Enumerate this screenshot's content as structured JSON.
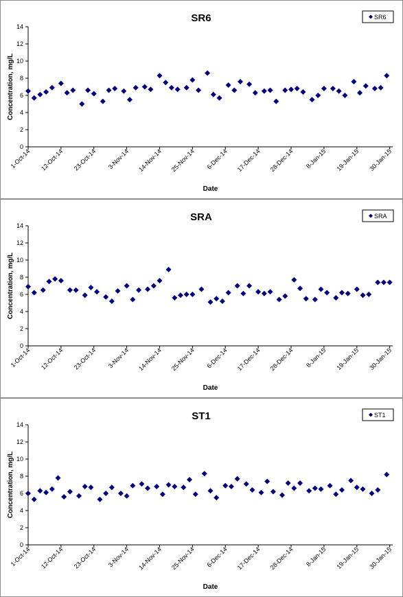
{
  "chart_data": [
    {
      "type": "scatter",
      "title": "SR6",
      "xlabel": "Date",
      "ylabel": "Concentration, mg/L",
      "ylim": [
        0,
        14
      ],
      "yticks": [
        "0",
        "2",
        "4",
        "6",
        "8",
        "10",
        "12",
        "14"
      ],
      "xlim": [
        "1-Oct-14",
        "31-Jan-15"
      ],
      "xticks": [
        "1-Oct-14",
        "12-Oct-14",
        "23-Oct-14",
        "3-Nov-14",
        "14-Nov-14",
        "25-Nov-14",
        "6-Dec-14",
        "17-Dec-14",
        "28-Dec-14",
        "8-Jan-15",
        "19-Jan-15",
        "30-Jan-15"
      ],
      "grid": false,
      "legend_position": "top-right",
      "marker_color": "#000080",
      "series": [
        {
          "name": "SR6",
          "points": [
            [
              "1-Oct-14",
              6.5
            ],
            [
              "3-Oct-14",
              5.7
            ],
            [
              "5-Oct-14",
              6.1
            ],
            [
              "7-Oct-14",
              6.4
            ],
            [
              "9-Oct-14",
              6.9
            ],
            [
              "12-Oct-14",
              7.4
            ],
            [
              "14-Oct-14",
              6.3
            ],
            [
              "16-Oct-14",
              6.6
            ],
            [
              "19-Oct-14",
              5.0
            ],
            [
              "21-Oct-14",
              6.6
            ],
            [
              "23-Oct-14",
              6.2
            ],
            [
              "26-Oct-14",
              5.3
            ],
            [
              "28-Oct-14",
              6.6
            ],
            [
              "30-Oct-14",
              6.8
            ],
            [
              "2-Nov-14",
              6.5
            ],
            [
              "4-Nov-14",
              5.5
            ],
            [
              "6-Nov-14",
              6.9
            ],
            [
              "9-Nov-14",
              7.0
            ],
            [
              "11-Nov-14",
              6.7
            ],
            [
              "14-Nov-14",
              8.3
            ],
            [
              "16-Nov-14",
              7.5
            ],
            [
              "18-Nov-14",
              6.9
            ],
            [
              "20-Nov-14",
              6.7
            ],
            [
              "23-Nov-14",
              6.9
            ],
            [
              "25-Nov-14",
              7.8
            ],
            [
              "27-Nov-14",
              6.6
            ],
            [
              "30-Nov-14",
              8.6
            ],
            [
              "2-Dec-14",
              6.1
            ],
            [
              "4-Dec-14",
              5.7
            ],
            [
              "7-Dec-14",
              7.2
            ],
            [
              "9-Dec-14",
              6.6
            ],
            [
              "11-Dec-14",
              7.6
            ],
            [
              "14-Dec-14",
              7.3
            ],
            [
              "16-Dec-14",
              6.3
            ],
            [
              "19-Dec-14",
              6.5
            ],
            [
              "21-Dec-14",
              6.6
            ],
            [
              "23-Dec-14",
              5.3
            ],
            [
              "26-Dec-14",
              6.6
            ],
            [
              "28-Dec-14",
              6.7
            ],
            [
              "30-Dec-14",
              6.8
            ],
            [
              "1-Jan-15",
              6.4
            ],
            [
              "4-Jan-15",
              5.5
            ],
            [
              "6-Jan-15",
              6.0
            ],
            [
              "8-Jan-15",
              6.8
            ],
            [
              "11-Jan-15",
              6.8
            ],
            [
              "13-Jan-15",
              6.5
            ],
            [
              "15-Jan-15",
              6.0
            ],
            [
              "18-Jan-15",
              7.6
            ],
            [
              "20-Jan-15",
              6.3
            ],
            [
              "22-Jan-15",
              7.1
            ],
            [
              "25-Jan-15",
              6.8
            ],
            [
              "27-Jan-15",
              6.9
            ],
            [
              "29-Jan-15",
              8.3
            ]
          ]
        }
      ]
    },
    {
      "type": "scatter",
      "title": "SRA",
      "xlabel": "Date",
      "ylabel": "Concentration, mg/L",
      "ylim": [
        0,
        14
      ],
      "yticks": [
        "0",
        "2",
        "4",
        "6",
        "8",
        "10",
        "12",
        "14"
      ],
      "xlim": [
        "1-Oct-14",
        "31-Jan-15"
      ],
      "xticks": [
        "1-Oct-14",
        "12-Oct-14",
        "23-Oct-14",
        "3-Nov-14",
        "14-Nov-14",
        "25-Nov-14",
        "6-Dec-14",
        "17-Dec-14",
        "28-Dec-14",
        "8-Jan-15",
        "19-Jan-15",
        "30-Jan-15"
      ],
      "grid": false,
      "legend_position": "top-right",
      "marker_color": "#000080",
      "series": [
        {
          "name": "SRA",
          "points": [
            [
              "1-Oct-14",
              6.9
            ],
            [
              "3-Oct-14",
              6.2
            ],
            [
              "6-Oct-14",
              6.5
            ],
            [
              "8-Oct-14",
              7.5
            ],
            [
              "10-Oct-14",
              7.8
            ],
            [
              "12-Oct-14",
              7.6
            ],
            [
              "15-Oct-14",
              6.5
            ],
            [
              "17-Oct-14",
              6.5
            ],
            [
              "20-Oct-14",
              5.9
            ],
            [
              "22-Oct-14",
              6.8
            ],
            [
              "24-Oct-14",
              6.3
            ],
            [
              "27-Oct-14",
              5.7
            ],
            [
              "29-Oct-14",
              5.2
            ],
            [
              "31-Oct-14",
              6.4
            ],
            [
              "3-Nov-14",
              7.0
            ],
            [
              "5-Nov-14",
              5.4
            ],
            [
              "7-Nov-14",
              6.5
            ],
            [
              "10-Nov-14",
              6.6
            ],
            [
              "12-Nov-14",
              7.0
            ],
            [
              "14-Nov-14",
              7.6
            ],
            [
              "17-Nov-14",
              8.9
            ],
            [
              "19-Nov-14",
              5.6
            ],
            [
              "21-Nov-14",
              5.9
            ],
            [
              "23-Nov-14",
              6.0
            ],
            [
              "25-Nov-14",
              6.0
            ],
            [
              "28-Nov-14",
              6.6
            ],
            [
              "1-Dec-14",
              5.1
            ],
            [
              "3-Dec-14",
              5.5
            ],
            [
              "5-Dec-14",
              5.2
            ],
            [
              "7-Dec-14",
              6.2
            ],
            [
              "10-Dec-14",
              7.0
            ],
            [
              "12-Dec-14",
              6.1
            ],
            [
              "14-Dec-14",
              7.0
            ],
            [
              "17-Dec-14",
              6.3
            ],
            [
              "19-Dec-14",
              6.1
            ],
            [
              "21-Dec-14",
              6.3
            ],
            [
              "24-Dec-14",
              5.4
            ],
            [
              "26-Dec-14",
              5.8
            ],
            [
              "29-Dec-14",
              7.7
            ],
            [
              "31-Dec-14",
              6.7
            ],
            [
              "2-Jan-15",
              5.5
            ],
            [
              "5-Jan-15",
              5.4
            ],
            [
              "7-Jan-15",
              6.6
            ],
            [
              "9-Jan-15",
              6.2
            ],
            [
              "12-Jan-15",
              5.6
            ],
            [
              "14-Jan-15",
              6.2
            ],
            [
              "16-Jan-15",
              6.1
            ],
            [
              "19-Jan-15",
              6.6
            ],
            [
              "21-Jan-15",
              5.9
            ],
            [
              "23-Jan-15",
              6.0
            ],
            [
              "26-Jan-15",
              7.4
            ],
            [
              "28-Jan-15",
              7.4
            ],
            [
              "30-Jan-15",
              7.4
            ]
          ]
        }
      ]
    },
    {
      "type": "scatter",
      "title": "ST1",
      "xlabel": "Date",
      "ylabel": "Concentration, mg/L",
      "ylim": [
        0,
        14
      ],
      "yticks": [
        "0",
        "2",
        "4",
        "6",
        "8",
        "10",
        "12",
        "14"
      ],
      "xlim": [
        "1-Oct-14",
        "31-Jan-15"
      ],
      "xticks": [
        "1-Oct-14",
        "12-Oct-14",
        "23-Oct-14",
        "3-Nov-14",
        "14-Nov-14",
        "25-Nov-14",
        "6-Dec-14",
        "17-Dec-14",
        "28-Dec-14",
        "8-Jan-15",
        "19-Jan-15",
        "30-Jan-15"
      ],
      "grid": false,
      "legend_position": "top-right",
      "marker_color": "#000080",
      "series": [
        {
          "name": "ST1",
          "points": [
            [
              "1-Oct-14",
              6.0
            ],
            [
              "3-Oct-14",
              5.3
            ],
            [
              "5-Oct-14",
              6.3
            ],
            [
              "7-Oct-14",
              6.1
            ],
            [
              "9-Oct-14",
              6.5
            ],
            [
              "11-Oct-14",
              7.8
            ],
            [
              "13-Oct-14",
              5.6
            ],
            [
              "15-Oct-14",
              6.2
            ],
            [
              "18-Oct-14",
              5.7
            ],
            [
              "20-Oct-14",
              6.8
            ],
            [
              "22-Oct-14",
              6.7
            ],
            [
              "25-Oct-14",
              5.3
            ],
            [
              "27-Oct-14",
              6.0
            ],
            [
              "29-Oct-14",
              6.7
            ],
            [
              "1-Nov-14",
              6.0
            ],
            [
              "3-Nov-14",
              5.7
            ],
            [
              "5-Nov-14",
              6.9
            ],
            [
              "8-Nov-14",
              7.1
            ],
            [
              "10-Nov-14",
              6.6
            ],
            [
              "13-Nov-14",
              6.8
            ],
            [
              "15-Nov-14",
              5.9
            ],
            [
              "17-Nov-14",
              7.0
            ],
            [
              "19-Nov-14",
              6.8
            ],
            [
              "22-Nov-14",
              6.7
            ],
            [
              "24-Nov-14",
              7.6
            ],
            [
              "26-Nov-14",
              5.9
            ],
            [
              "29-Nov-14",
              8.3
            ],
            [
              "1-Dec-14",
              6.3
            ],
            [
              "3-Dec-14",
              5.5
            ],
            [
              "6-Dec-14",
              6.9
            ],
            [
              "8-Dec-14",
              6.8
            ],
            [
              "10-Dec-14",
              7.7
            ],
            [
              "13-Dec-14",
              7.1
            ],
            [
              "15-Dec-14",
              6.4
            ],
            [
              "18-Dec-14",
              6.1
            ],
            [
              "20-Dec-14",
              7.4
            ],
            [
              "22-Dec-14",
              6.2
            ],
            [
              "25-Dec-14",
              5.8
            ],
            [
              "27-Dec-14",
              7.2
            ],
            [
              "29-Dec-14",
              6.6
            ],
            [
              "31-Dec-14",
              7.2
            ],
            [
              "3-Jan-15",
              6.3
            ],
            [
              "5-Jan-15",
              6.6
            ],
            [
              "7-Jan-15",
              6.5
            ],
            [
              "10-Jan-15",
              6.9
            ],
            [
              "12-Jan-15",
              5.9
            ],
            [
              "14-Jan-15",
              6.4
            ],
            [
              "17-Jan-15",
              7.5
            ],
            [
              "19-Jan-15",
              6.7
            ],
            [
              "21-Jan-15",
              6.5
            ],
            [
              "24-Jan-15",
              6.0
            ],
            [
              "26-Jan-15",
              6.4
            ],
            [
              "29-Jan-15",
              8.2
            ]
          ]
        }
      ]
    }
  ]
}
